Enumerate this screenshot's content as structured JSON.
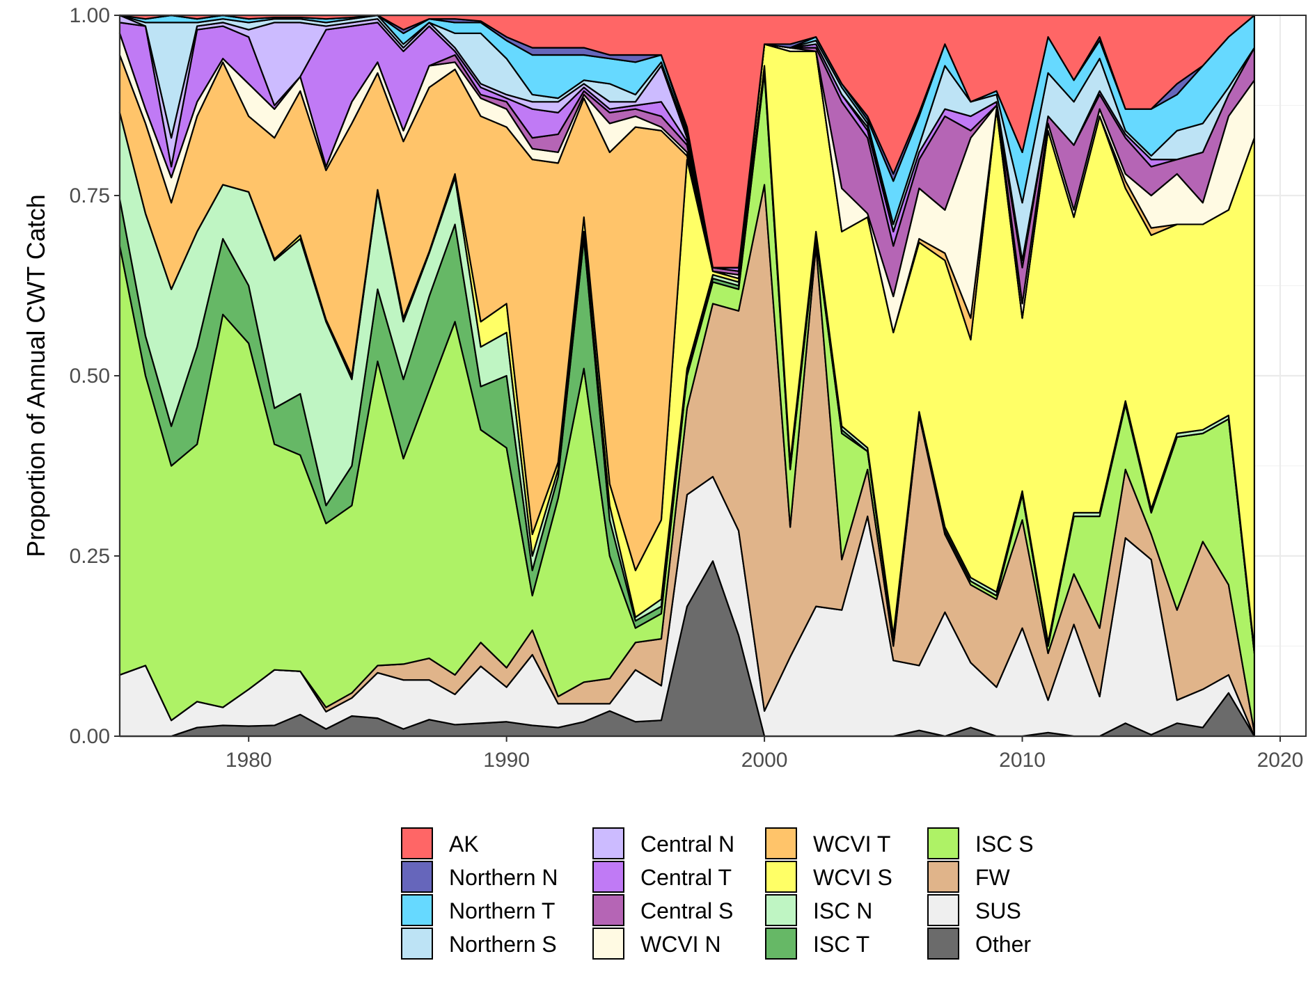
{
  "chart_data": {
    "type": "area",
    "stacked": true,
    "normalized": true,
    "ylabel": "Proportion of Annual CWT Catch",
    "xlabel": "",
    "xlim": [
      1975,
      2021
    ],
    "ylim": [
      0,
      1
    ],
    "x_ticks": [
      1980,
      1990,
      2000,
      2010,
      2020
    ],
    "y_ticks": [
      "0.00",
      "0.25",
      "0.50",
      "0.75",
      "1.00"
    ],
    "legend_position": "bottom",
    "grid": true,
    "x": [
      1975,
      1976,
      1977,
      1978,
      1979,
      1980,
      1981,
      1982,
      1983,
      1984,
      1985,
      1986,
      1987,
      1988,
      1989,
      1990,
      1991,
      1992,
      1993,
      1994,
      1995,
      1996,
      1997,
      1998,
      1999,
      2000,
      2001,
      2002,
      2003,
      2004,
      2005,
      2006,
      2007,
      2008,
      2009,
      2010,
      2011,
      2012,
      2013,
      2014,
      2015,
      2016,
      2017,
      2018,
      2019
    ],
    "series_order_bottom_to_top": [
      "Other",
      "SUS",
      "FW",
      "ISC S",
      "ISC T",
      "ISC N",
      "WCVI S",
      "WCVI T",
      "WCVI N",
      "Central S",
      "Central T",
      "Central N",
      "Northern S",
      "Northern T",
      "Northern N",
      "AK"
    ],
    "cumulative_tops": {
      "Other": [
        0,
        0,
        0,
        0.012,
        0.015,
        0.014,
        0.015,
        0.03,
        0.01,
        0.028,
        0.025,
        0.01,
        0.023,
        0.016,
        0.018,
        0.02,
        0.015,
        0.012,
        0.02,
        0.035,
        0.02,
        0.022,
        0.18,
        0.243,
        0.14,
        0,
        0,
        0,
        0,
        0,
        0,
        0.008,
        0,
        0.012,
        0,
        0,
        0.005,
        0,
        0,
        0.018,
        0.002,
        0.018,
        0.012,
        0.06,
        0
      ],
      "SUS": [
        0.085,
        0.098,
        0.022,
        0.048,
        0.04,
        0.065,
        0.092,
        0.09,
        0.034,
        0.053,
        0.088,
        0.078,
        0.078,
        0.058,
        0.097,
        0.068,
        0.113,
        0.045,
        0.045,
        0.045,
        0.092,
        0.07,
        0.335,
        0.36,
        0.285,
        0.035,
        0.11,
        0.18,
        0.175,
        0.305,
        0.105,
        0.098,
        0.172,
        0.102,
        0.068,
        0.15,
        0.05,
        0.155,
        0.055,
        0.275,
        0.245,
        0.05,
        0.065,
        0.085,
        0
      ],
      "FW": [
        0.085,
        0.098,
        0.022,
        0.048,
        0.04,
        0.065,
        0.092,
        0.09,
        0.04,
        0.06,
        0.098,
        0.1,
        0.108,
        0.085,
        0.13,
        0.095,
        0.147,
        0.055,
        0.075,
        0.08,
        0.13,
        0.135,
        0.455,
        0.6,
        0.59,
        0.765,
        0.29,
        0.68,
        0.245,
        0.37,
        0.125,
        0.445,
        0.28,
        0.21,
        0.19,
        0.3,
        0.115,
        0.225,
        0.15,
        0.37,
        0.28,
        0.175,
        0.27,
        0.21,
        0.005
      ],
      "ISC S": [
        0.68,
        0.5,
        0.375,
        0.405,
        0.585,
        0.545,
        0.405,
        0.39,
        0.295,
        0.32,
        0.52,
        0.385,
        0.48,
        0.575,
        0.425,
        0.4,
        0.195,
        0.33,
        0.51,
        0.25,
        0.15,
        0.17,
        0.5,
        0.63,
        0.62,
        0.92,
        0.37,
        0.69,
        0.42,
        0.395,
        0.135,
        0.445,
        0.285,
        0.215,
        0.195,
        0.335,
        0.125,
        0.305,
        0.305,
        0.46,
        0.31,
        0.415,
        0.42,
        0.44,
        0.115
      ],
      "ISC T": [
        0.745,
        0.555,
        0.43,
        0.54,
        0.69,
        0.625,
        0.455,
        0.475,
        0.32,
        0.375,
        0.62,
        0.495,
        0.61,
        0.71,
        0.485,
        0.5,
        0.23,
        0.36,
        0.69,
        0.3,
        0.16,
        0.18,
        0.505,
        0.635,
        0.625,
        0.925,
        0.375,
        0.695,
        0.425,
        0.395,
        0.135,
        0.445,
        0.285,
        0.215,
        0.195,
        0.335,
        0.125,
        0.305,
        0.305,
        0.46,
        0.31,
        0.415,
        0.42,
        0.44,
        0.115
      ],
      "ISC N": [
        0.865,
        0.725,
        0.62,
        0.7,
        0.765,
        0.755,
        0.66,
        0.69,
        0.575,
        0.495,
        0.755,
        0.575,
        0.67,
        0.775,
        0.54,
        0.56,
        0.25,
        0.37,
        0.7,
        0.32,
        0.165,
        0.19,
        0.51,
        0.64,
        0.63,
        0.93,
        0.38,
        0.7,
        0.43,
        0.4,
        0.14,
        0.45,
        0.29,
        0.22,
        0.2,
        0.34,
        0.13,
        0.31,
        0.31,
        0.465,
        0.315,
        0.42,
        0.425,
        0.445,
        0.12
      ],
      "WCVI S": [
        0.865,
        0.725,
        0.62,
        0.7,
        0.765,
        0.755,
        0.662,
        0.695,
        0.578,
        0.5,
        0.758,
        0.58,
        0.672,
        0.78,
        0.575,
        0.6,
        0.28,
        0.38,
        0.72,
        0.35,
        0.23,
        0.3,
        0.8,
        0.645,
        0.635,
        0.96,
        0.95,
        0.95,
        0.7,
        0.72,
        0.56,
        0.685,
        0.66,
        0.55,
        0.87,
        0.58,
        0.84,
        0.72,
        0.86,
        0.76,
        0.695,
        0.71,
        0.71,
        0.73,
        0.83
      ],
      "WCVI T": [
        0.945,
        0.85,
        0.74,
        0.86,
        0.935,
        0.86,
        0.83,
        0.895,
        0.785,
        0.85,
        0.92,
        0.825,
        0.9,
        0.925,
        0.86,
        0.845,
        0.8,
        0.795,
        0.885,
        0.81,
        0.845,
        0.84,
        0.805,
        0.645,
        0.635,
        0.96,
        0.95,
        0.95,
        0.7,
        0.72,
        0.56,
        0.69,
        0.67,
        0.58,
        0.87,
        0.58,
        0.84,
        0.72,
        0.86,
        0.77,
        0.705,
        0.71,
        0.71,
        0.73,
        0.83
      ],
      "WCVI N": [
        0.975,
        0.87,
        0.775,
        0.88,
        0.94,
        0.905,
        0.87,
        0.915,
        0.79,
        0.88,
        0.935,
        0.84,
        0.93,
        0.935,
        0.885,
        0.87,
        0.815,
        0.81,
        0.89,
        0.85,
        0.86,
        0.845,
        0.81,
        0.645,
        0.64,
        0.96,
        0.955,
        0.95,
        0.76,
        0.725,
        0.61,
        0.76,
        0.73,
        0.83,
        0.875,
        0.6,
        0.85,
        0.73,
        0.87,
        0.78,
        0.75,
        0.78,
        0.74,
        0.86,
        0.91
      ],
      "Central S": [
        0.975,
        0.87,
        0.775,
        0.88,
        0.94,
        0.905,
        0.87,
        0.915,
        0.79,
        0.88,
        0.935,
        0.84,
        0.93,
        0.945,
        0.89,
        0.88,
        0.83,
        0.835,
        0.895,
        0.865,
        0.87,
        0.86,
        0.82,
        0.65,
        0.645,
        0.96,
        0.955,
        0.955,
        0.88,
        0.83,
        0.68,
        0.8,
        0.86,
        0.84,
        0.875,
        0.65,
        0.86,
        0.82,
        0.89,
        0.83,
        0.79,
        0.8,
        0.81,
        0.89,
        0.955
      ],
      "Central T": [
        0.99,
        0.985,
        0.79,
        0.98,
        0.985,
        0.97,
        0.875,
        0.915,
        0.98,
        0.985,
        0.99,
        0.95,
        0.985,
        0.95,
        0.9,
        0.885,
        0.87,
        0.865,
        0.9,
        0.87,
        0.875,
        0.88,
        0.825,
        0.65,
        0.65,
        0.96,
        0.955,
        0.96,
        0.89,
        0.84,
        0.7,
        0.81,
        0.87,
        0.86,
        0.88,
        0.66,
        0.86,
        0.82,
        0.895,
        0.835,
        0.8,
        0.8,
        0.81,
        0.89,
        0.955
      ],
      "Central N": [
        1.0,
        0.985,
        0.83,
        0.985,
        0.99,
        0.98,
        0.99,
        0.99,
        0.985,
        0.99,
        0.995,
        0.955,
        0.99,
        0.955,
        0.905,
        0.89,
        0.88,
        0.88,
        0.905,
        0.88,
        0.88,
        0.93,
        0.83,
        0.65,
        0.65,
        0.96,
        0.955,
        0.96,
        0.89,
        0.845,
        0.7,
        0.81,
        0.87,
        0.86,
        0.88,
        0.66,
        0.86,
        0.82,
        0.895,
        0.835,
        0.8,
        0.8,
        0.81,
        0.89,
        0.955
      ],
      "Northern S": [
        1.0,
        0.99,
        0.99,
        0.99,
        0.995,
        0.99,
        0.995,
        0.995,
        0.99,
        0.995,
        1.0,
        0.96,
        0.99,
        0.975,
        0.975,
        0.94,
        0.89,
        0.885,
        0.91,
        0.905,
        0.89,
        0.935,
        0.835,
        0.65,
        0.65,
        0.96,
        0.955,
        0.965,
        0.9,
        0.85,
        0.71,
        0.82,
        0.93,
        0.88,
        0.89,
        0.74,
        0.92,
        0.88,
        0.94,
        0.84,
        0.805,
        0.84,
        0.85,
        0.9,
        0.955
      ],
      "Northern T": [
        1.0,
        0.995,
        1.0,
        0.995,
        1.0,
        0.995,
        0.997,
        0.997,
        0.995,
        0.997,
        1.0,
        0.975,
        0.995,
        0.99,
        0.99,
        0.965,
        0.945,
        0.945,
        0.945,
        0.94,
        0.935,
        0.945,
        0.84,
        0.65,
        0.65,
        0.96,
        0.955,
        0.97,
        0.905,
        0.855,
        0.77,
        0.86,
        0.96,
        0.88,
        0.895,
        0.81,
        0.97,
        0.91,
        0.965,
        0.87,
        0.87,
        0.89,
        0.93,
        0.97,
        1.0
      ],
      "Northern N": [
        1.0,
        0.995,
        1.0,
        0.995,
        1.0,
        0.995,
        0.997,
        0.997,
        0.995,
        0.997,
        1.0,
        0.98,
        0.995,
        0.995,
        0.992,
        0.97,
        0.955,
        0.955,
        0.955,
        0.945,
        0.945,
        0.945,
        0.845,
        0.65,
        0.65,
        0.96,
        0.96,
        0.97,
        0.905,
        0.86,
        0.78,
        0.865,
        0.96,
        0.88,
        0.895,
        0.81,
        0.97,
        0.91,
        0.97,
        0.87,
        0.87,
        0.905,
        0.93,
        0.97,
        1.0
      ],
      "AK": [
        1,
        1,
        1,
        1,
        1,
        1,
        1,
        1,
        1,
        1,
        1,
        1,
        1,
        1,
        1,
        1,
        1,
        1,
        1,
        1,
        1,
        1,
        1,
        1,
        1,
        1,
        1,
        1,
        1,
        1,
        1,
        1,
        1,
        1,
        1,
        1,
        1,
        1,
        1,
        1,
        1,
        1,
        1,
        1,
        1
      ]
    },
    "legend": [
      {
        "name": "AK",
        "color": "#ff6666"
      },
      {
        "name": "Northern N",
        "color": "#6666bb"
      },
      {
        "name": "Northern T",
        "color": "#66d9ff"
      },
      {
        "name": "Northern S",
        "color": "#bde3f5"
      },
      {
        "name": "Central N",
        "color": "#ccbbff"
      },
      {
        "name": "Central T",
        "color": "#c07af5"
      },
      {
        "name": "Central S",
        "color": "#b565b5"
      },
      {
        "name": "WCVI N",
        "color": "#fffae3"
      },
      {
        "name": "WCVI T",
        "color": "#ffc46a"
      },
      {
        "name": "WCVI S",
        "color": "#ffff66"
      },
      {
        "name": "ISC N",
        "color": "#bff5c3"
      },
      {
        "name": "ISC T",
        "color": "#66b866"
      },
      {
        "name": "ISC S",
        "color": "#aef266"
      },
      {
        "name": "FW",
        "color": "#e0b48a"
      },
      {
        "name": "SUS",
        "color": "#efefef"
      },
      {
        "name": "Other",
        "color": "#6b6b6b"
      }
    ]
  }
}
